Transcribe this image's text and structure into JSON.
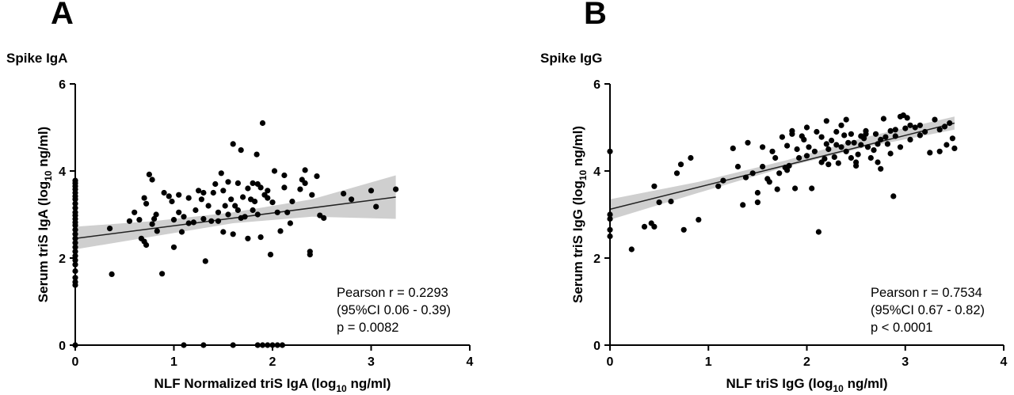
{
  "colors": {
    "points": "#000000",
    "fit_line": "#222222",
    "ci_band": "#cfcfcf",
    "axis": "#000000"
  },
  "chart_data": [
    {
      "type": "scatter",
      "panel": "A",
      "title": "Spike IgA",
      "xlabel": {
        "main": "NLF Normalized triS IgA (log",
        "sub": "10",
        "tail": " ng/ml)"
      },
      "ylabel": {
        "main": "Serum triS IgA (log",
        "sub": "10",
        "tail": " ng/ml)"
      },
      "xlim": [
        0,
        4
      ],
      "ylim": [
        0,
        6
      ],
      "xticks": [
        0,
        1,
        2,
        3,
        4
      ],
      "yticks": [
        0,
        2,
        4,
        6
      ],
      "grid": false,
      "stats": [
        "Pearson r = 0.2293",
        "(95%CI 0.06 - 0.39)",
        "p = 0.0082"
      ],
      "fit": {
        "x": [
          0,
          3.25
        ],
        "y": [
          2.45,
          3.4
        ]
      },
      "ci_band": {
        "x": [
          0,
          0.8,
          1.6,
          2.4,
          3.25
        ],
        "lower": [
          2.2,
          2.5,
          2.8,
          2.95,
          2.9
        ],
        "upper": [
          2.72,
          2.85,
          3.05,
          3.35,
          3.9
        ]
      },
      "points": [
        [
          0,
          3.78
        ],
        [
          0,
          3.72
        ],
        [
          0,
          3.65
        ],
        [
          0,
          3.58
        ],
        [
          0,
          3.5
        ],
        [
          0,
          3.42
        ],
        [
          0,
          3.35
        ],
        [
          0,
          3.25
        ],
        [
          0,
          3.15
        ],
        [
          0,
          3.05
        ],
        [
          0,
          2.98
        ],
        [
          0,
          2.9
        ],
        [
          0,
          2.82
        ],
        [
          0,
          2.75
        ],
        [
          0,
          2.65
        ],
        [
          0,
          2.55
        ],
        [
          0,
          2.45
        ],
        [
          0,
          2.35
        ],
        [
          0,
          2.25
        ],
        [
          0,
          2.15
        ],
        [
          0,
          2.05
        ],
        [
          0,
          1.95
        ],
        [
          0,
          1.85
        ],
        [
          0,
          1.7
        ],
        [
          0,
          1.55
        ],
        [
          0,
          1.45
        ],
        [
          0,
          1.38
        ],
        [
          0,
          0
        ],
        [
          0.35,
          2.68
        ],
        [
          0.37,
          1.63
        ],
        [
          0.55,
          2.85
        ],
        [
          0.6,
          3.05
        ],
        [
          0.65,
          2.88
        ],
        [
          0.67,
          2.45
        ],
        [
          0.7,
          2.38
        ],
        [
          0.72,
          2.3
        ],
        [
          0.7,
          3.38
        ],
        [
          0.72,
          3.25
        ],
        [
          0.75,
          3.92
        ],
        [
          0.78,
          3.8
        ],
        [
          0.78,
          2.78
        ],
        [
          0.8,
          2.9
        ],
        [
          0.82,
          3.0
        ],
        [
          0.83,
          2.62
        ],
        [
          0.9,
          3.5
        ],
        [
          0.88,
          1.64
        ],
        [
          0.95,
          3.42
        ],
        [
          0.98,
          3.3
        ],
        [
          1.0,
          2.25
        ],
        [
          1.0,
          2.88
        ],
        [
          1.05,
          3.45
        ],
        [
          1.05,
          3.05
        ],
        [
          1.08,
          2.6
        ],
        [
          1.1,
          2.95
        ],
        [
          1.15,
          3.38
        ],
        [
          1.15,
          2.8
        ],
        [
          1.2,
          2.82
        ],
        [
          1.22,
          3.1
        ],
        [
          1.25,
          3.55
        ],
        [
          1.28,
          3.35
        ],
        [
          1.3,
          2.9
        ],
        [
          1.3,
          3.5
        ],
        [
          1.32,
          1.93
        ],
        [
          1.35,
          3.2
        ],
        [
          1.38,
          2.85
        ],
        [
          1.4,
          3.5
        ],
        [
          1.42,
          3.7
        ],
        [
          1.45,
          2.85
        ],
        [
          1.45,
          3.05
        ],
        [
          1.48,
          3.95
        ],
        [
          1.5,
          2.6
        ],
        [
          1.5,
          3.55
        ],
        [
          1.52,
          3.2
        ],
        [
          1.55,
          3.0
        ],
        [
          1.55,
          3.75
        ],
        [
          1.58,
          3.35
        ],
        [
          1.6,
          4.62
        ],
        [
          1.6,
          2.55
        ],
        [
          1.62,
          3.2
        ],
        [
          1.65,
          3.72
        ],
        [
          1.65,
          3.1
        ],
        [
          1.68,
          2.92
        ],
        [
          1.68,
          4.48
        ],
        [
          1.7,
          3.4
        ],
        [
          1.72,
          2.95
        ],
        [
          1.75,
          3.6
        ],
        [
          1.75,
          2.45
        ],
        [
          1.78,
          3.35
        ],
        [
          1.8,
          3.72
        ],
        [
          1.8,
          3.1
        ],
        [
          1.82,
          3.3
        ],
        [
          1.84,
          4.38
        ],
        [
          1.85,
          3.0
        ],
        [
          1.85,
          3.7
        ],
        [
          1.88,
          3.62
        ],
        [
          1.88,
          2.48
        ],
        [
          1.9,
          5.1
        ],
        [
          1.92,
          3.45
        ],
        [
          1.95,
          3.38
        ],
        [
          1.95,
          3.55
        ],
        [
          1.98,
          2.08
        ],
        [
          2.0,
          3.28
        ],
        [
          2.02,
          4.0
        ],
        [
          2.05,
          3.05
        ],
        [
          2.08,
          2.62
        ],
        [
          2.12,
          3.9
        ],
        [
          2.12,
          3.62
        ],
        [
          2.15,
          3.05
        ],
        [
          2.18,
          2.8
        ],
        [
          2.2,
          3.3
        ],
        [
          2.28,
          3.58
        ],
        [
          2.3,
          3.8
        ],
        [
          2.33,
          4.02
        ],
        [
          2.33,
          3.72
        ],
        [
          2.38,
          2.15
        ],
        [
          2.38,
          2.08
        ],
        [
          2.4,
          3.45
        ],
        [
          2.45,
          3.88
        ],
        [
          2.48,
          2.98
        ],
        [
          2.52,
          2.92
        ],
        [
          2.72,
          3.48
        ],
        [
          2.8,
          3.35
        ],
        [
          3.0,
          3.55
        ],
        [
          3.05,
          3.18
        ],
        [
          3.25,
          3.58
        ],
        [
          1.1,
          0
        ],
        [
          1.3,
          0
        ],
        [
          1.6,
          0
        ],
        [
          1.85,
          0
        ],
        [
          1.9,
          0
        ],
        [
          1.95,
          0
        ],
        [
          2.0,
          0
        ],
        [
          2.05,
          0
        ],
        [
          2.1,
          0
        ]
      ]
    },
    {
      "type": "scatter",
      "panel": "B",
      "title": "Spike IgG",
      "xlabel": {
        "main": "NLF triS IgG (log",
        "sub": "10",
        "tail": " ng/ml)"
      },
      "ylabel": {
        "main": "Serum triS IgG (log",
        "sub": "10",
        "tail": " ng/ml)"
      },
      "xlim": [
        0,
        4
      ],
      "ylim": [
        0,
        6
      ],
      "xticks": [
        0,
        1,
        2,
        3,
        4
      ],
      "yticks": [
        0,
        2,
        4,
        6
      ],
      "grid": false,
      "stats": [
        "Pearson r = 0.7534",
        "(95%CI 0.67 - 0.82)",
        "p < 0.0001"
      ],
      "fit": {
        "x": [
          0,
          3.5
        ],
        "y": [
          3.12,
          5.1
        ]
      },
      "ci_band": {
        "x": [
          0,
          0.9,
          1.8,
          2.6,
          3.5
        ],
        "lower": [
          2.88,
          3.5,
          4.1,
          4.55,
          4.95
        ],
        "upper": [
          3.35,
          3.75,
          4.25,
          4.78,
          5.25
        ]
      },
      "points": [
        [
          0,
          4.45
        ],
        [
          0,
          3.0
        ],
        [
          0,
          2.9
        ],
        [
          0,
          2.65
        ],
        [
          0,
          2.5
        ],
        [
          0.22,
          2.2
        ],
        [
          0.35,
          2.72
        ],
        [
          0.42,
          2.8
        ],
        [
          0.45,
          2.72
        ],
        [
          0.45,
          3.65
        ],
        [
          0.5,
          3.28
        ],
        [
          0.62,
          3.3
        ],
        [
          0.68,
          3.95
        ],
        [
          0.72,
          4.15
        ],
        [
          0.75,
          2.65
        ],
        [
          0.82,
          4.3
        ],
        [
          0.9,
          2.88
        ],
        [
          1.1,
          3.65
        ],
        [
          1.15,
          3.78
        ],
        [
          1.25,
          4.52
        ],
        [
          1.3,
          4.1
        ],
        [
          1.35,
          3.22
        ],
        [
          1.38,
          3.85
        ],
        [
          1.4,
          4.65
        ],
        [
          1.45,
          3.95
        ],
        [
          1.5,
          3.5
        ],
        [
          1.5,
          3.28
        ],
        [
          1.55,
          4.1
        ],
        [
          1.55,
          4.55
        ],
        [
          1.6,
          3.82
        ],
        [
          1.62,
          3.75
        ],
        [
          1.68,
          4.3
        ],
        [
          1.7,
          3.58
        ],
        [
          1.72,
          3.95
        ],
        [
          1.75,
          4.78
        ],
        [
          1.78,
          4.08
        ],
        [
          1.8,
          4.02
        ],
        [
          1.8,
          4.58
        ],
        [
          1.82,
          4.12
        ],
        [
          1.85,
          4.92
        ],
        [
          1.88,
          3.6
        ],
        [
          1.9,
          4.5
        ],
        [
          1.92,
          4.3
        ],
        [
          1.95,
          4.8
        ],
        [
          2.0,
          5.0
        ],
        [
          2.0,
          4.35
        ],
        [
          2.02,
          4.55
        ],
        [
          2.05,
          3.6
        ],
        [
          2.08,
          4.45
        ],
        [
          2.1,
          4.9
        ],
        [
          2.12,
          2.6
        ],
        [
          2.15,
          4.2
        ],
        [
          2.15,
          4.78
        ],
        [
          2.18,
          4.28
        ],
        [
          2.2,
          4.62
        ],
        [
          2.22,
          4.5
        ],
        [
          2.22,
          4.15
        ],
        [
          2.25,
          4.7
        ],
        [
          2.28,
          4.32
        ],
        [
          2.3,
          4.6
        ],
        [
          2.3,
          4.9
        ],
        [
          2.32,
          4.18
        ],
        [
          2.35,
          4.55
        ],
        [
          2.38,
          4.82
        ],
        [
          2.4,
          4.45
        ],
        [
          2.4,
          5.18
        ],
        [
          2.42,
          4.65
        ],
        [
          2.45,
          4.3
        ],
        [
          2.48,
          4.65
        ],
        [
          2.5,
          4.2
        ],
        [
          2.5,
          4.12
        ],
        [
          2.52,
          4.38
        ],
        [
          2.55,
          4.8
        ],
        [
          2.55,
          4.6
        ],
        [
          2.58,
          4.75
        ],
        [
          2.6,
          4.92
        ],
        [
          2.62,
          4.55
        ],
        [
          2.65,
          4.3
        ],
        [
          2.68,
          4.48
        ],
        [
          2.7,
          4.85
        ],
        [
          2.72,
          4.62
        ],
        [
          2.72,
          4.2
        ],
        [
          2.75,
          4.05
        ],
        [
          2.75,
          4.72
        ],
        [
          2.78,
          5.2
        ],
        [
          2.8,
          4.78
        ],
        [
          2.82,
          4.62
        ],
        [
          2.85,
          4.92
        ],
        [
          2.85,
          4.4
        ],
        [
          2.88,
          3.42
        ],
        [
          2.9,
          4.8
        ],
        [
          2.9,
          4.95
        ],
        [
          2.95,
          4.55
        ],
        [
          2.98,
          5.28
        ],
        [
          3.0,
          4.98
        ],
        [
          3.02,
          5.22
        ],
        [
          3.05,
          5.05
        ],
        [
          3.05,
          4.72
        ],
        [
          3.1,
          5.0
        ],
        [
          3.15,
          4.82
        ],
        [
          3.2,
          4.9
        ],
        [
          3.25,
          4.42
        ],
        [
          3.3,
          5.18
        ],
        [
          3.35,
          4.95
        ],
        [
          3.35,
          4.45
        ],
        [
          3.4,
          5.02
        ],
        [
          3.42,
          4.6
        ],
        [
          3.45,
          5.1
        ],
        [
          3.48,
          4.75
        ],
        [
          3.5,
          4.52
        ],
        [
          3.15,
          5.05
        ],
        [
          2.95,
          5.25
        ],
        [
          2.6,
          4.85
        ],
        [
          2.45,
          4.85
        ],
        [
          2.35,
          5.05
        ],
        [
          2.2,
          5.15
        ],
        [
          1.97,
          4.72
        ],
        [
          1.85,
          4.85
        ],
        [
          1.65,
          4.45
        ]
      ]
    }
  ]
}
